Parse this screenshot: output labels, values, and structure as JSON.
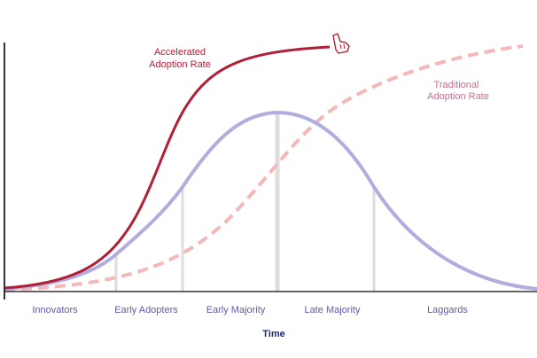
{
  "curves": {
    "accelerated": {
      "label_line1": "Accelerated",
      "label_line2": "Adoption Rate",
      "color": "#b01f35"
    },
    "traditional": {
      "label_line1": "Traditional",
      "label_line2": "Adoption Rate",
      "color": "#f5b8b8",
      "label_color": "#c07090"
    },
    "bell": {
      "color": "#b0addf"
    }
  },
  "segments": {
    "color": "#5e5aa8",
    "divider_color": "#dddddd",
    "items": [
      {
        "label": "Innovators"
      },
      {
        "label": "Early Adopters"
      },
      {
        "label": "Early Majority"
      },
      {
        "label": "Late Majority"
      },
      {
        "label": "Laggards"
      }
    ]
  },
  "axis": {
    "x_label": "Time",
    "x_label_color": "#1e2a6b",
    "color": "#333333"
  },
  "marker": {
    "name": "hand-pointer-icon",
    "color": "#b01f35"
  }
}
